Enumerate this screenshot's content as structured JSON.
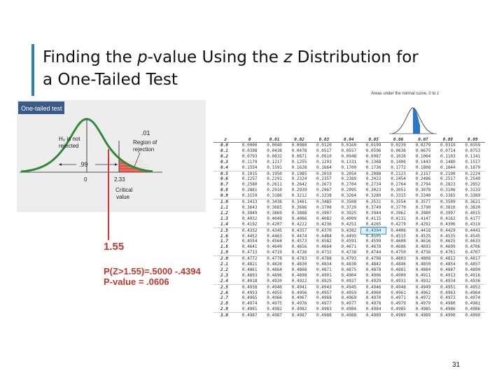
{
  "slide": {
    "title_line1_part1": "Finding the ",
    "title_line1_italic1": "p",
    "title_line1_part2": "-value  Using the ",
    "title_line1_italic2": "z",
    "title_line1_part3": " Distribution for",
    "title_line2": "a One-Tailed Test",
    "page_number": "31",
    "accent_color": "#2e7fb6"
  },
  "figure": {
    "heading": "One-tailed test",
    "h0_line1": "H₀ is not",
    "h0_line2": "rejected",
    "area_left": ".99",
    "area_right": ".01",
    "region_line1": "Region of",
    "region_line2": "rejection",
    "axis_zero": "0",
    "axis_critical": "2.33",
    "critical_line1": "Critical",
    "critical_line2": "value",
    "z_value": "1.55",
    "prob_line1": "P(Z>1.55)=.5000 -.4394",
    "prob_line2": "P-value = .0606"
  },
  "table": {
    "caption": "Areas under the normal curve, 0 to z",
    "columns": [
      "z",
      "0",
      "0.01",
      "0.02",
      "0.03",
      "0.04",
      "0.05",
      "0.06",
      "0.07",
      "0.08",
      "0.09"
    ],
    "highlight": {
      "row": 15,
      "col": 6
    },
    "rows": [
      [
        "0.0",
        "0.0000",
        "0.0040",
        "0.0080",
        "0.0120",
        "0.0160",
        "0.0199",
        "0.0239",
        "0.0279",
        "0.0319",
        "0.0359"
      ],
      [
        "0.1",
        "0.0398",
        "0.0438",
        "0.0478",
        "0.0517",
        "0.0557",
        "0.0596",
        "0.0636",
        "0.0675",
        "0.0714",
        "0.0753"
      ],
      [
        "0.2",
        "0.0793",
        "0.0832",
        "0.0871",
        "0.0910",
        "0.0948",
        "0.0987",
        "0.1026",
        "0.1064",
        "0.1103",
        "0.1141"
      ],
      [
        "0.3",
        "0.1179",
        "0.1217",
        "0.1255",
        "0.1293",
        "0.1331",
        "0.1368",
        "0.1406",
        "0.1443",
        "0.1480",
        "0.1517"
      ],
      [
        "0.4",
        "0.1554",
        "0.1591",
        "0.1628",
        "0.1664",
        "0.1700",
        "0.1736",
        "0.1772",
        "0.1808",
        "0.1844",
        "0.1879"
      ],
      [
        "0.5",
        "0.1915",
        "0.1950",
        "0.1985",
        "0.2019",
        "0.2054",
        "0.2088",
        "0.2123",
        "0.2157",
        "0.2190",
        "0.2224"
      ],
      [
        "0.6",
        "0.2257",
        "0.2291",
        "0.2324",
        "0.2357",
        "0.2389",
        "0.2422",
        "0.2454",
        "0.2486",
        "0.2517",
        "0.2549"
      ],
      [
        "0.7",
        "0.2580",
        "0.2611",
        "0.2642",
        "0.2673",
        "0.2704",
        "0.2734",
        "0.2764",
        "0.2794",
        "0.2823",
        "0.2852"
      ],
      [
        "0.8",
        "0.2881",
        "0.2910",
        "0.2939",
        "0.2967",
        "0.2995",
        "0.3023",
        "0.3051",
        "0.3078",
        "0.3106",
        "0.3133"
      ],
      [
        "0.9",
        "0.3159",
        "0.3186",
        "0.3212",
        "0.3238",
        "0.3264",
        "0.3289",
        "0.3315",
        "0.3340",
        "0.3365",
        "0.3389"
      ],
      [
        "1.0",
        "0.3413",
        "0.3438",
        "0.3461",
        "0.3485",
        "0.3508",
        "0.3531",
        "0.3554",
        "0.3577",
        "0.3599",
        "0.3621"
      ],
      [
        "1.1",
        "0.3643",
        "0.3665",
        "0.3686",
        "0.3708",
        "0.3729",
        "0.3749",
        "0.3770",
        "0.3790",
        "0.3810",
        "0.3830"
      ],
      [
        "1.2",
        "0.3849",
        "0.3869",
        "0.3888",
        "0.3907",
        "0.3925",
        "0.3944",
        "0.3962",
        "0.3980",
        "0.3997",
        "0.4015"
      ],
      [
        "1.3",
        "0.4032",
        "0.4049",
        "0.4066",
        "0.4082",
        "0.4099",
        "0.4115",
        "0.4131",
        "0.4147",
        "0.4162",
        "0.4177"
      ],
      [
        "1.4",
        "0.4192",
        "0.4207",
        "0.4222",
        "0.4236",
        "0.4251",
        "0.4265",
        "0.4279",
        "0.4292",
        "0.4306",
        "0.4319"
      ],
      [
        "1.5",
        "0.4332",
        "0.4345",
        "0.4357",
        "0.4370",
        "0.4382",
        "0.4394",
        "0.4406",
        "0.4418",
        "0.4429",
        "0.4441"
      ],
      [
        "1.6",
        "0.4452",
        "0.4463",
        "0.4474",
        "0.4484",
        "0.4495",
        "0.4505",
        "0.4515",
        "0.4525",
        "0.4535",
        "0.4545"
      ],
      [
        "1.7",
        "0.4554",
        "0.4564",
        "0.4573",
        "0.4582",
        "0.4591",
        "0.4599",
        "0.4608",
        "0.4616",
        "0.4625",
        "0.4633"
      ],
      [
        "1.8",
        "0.4641",
        "0.4649",
        "0.4656",
        "0.4664",
        "0.4671",
        "0.4678",
        "0.4686",
        "0.4693",
        "0.4699",
        "0.4706"
      ],
      [
        "1.9",
        "0.4713",
        "0.4719",
        "0.4726",
        "0.4732",
        "0.4738",
        "0.4744",
        "0.4750",
        "0.4756",
        "0.4761",
        "0.4767"
      ],
      [
        "2.0",
        "0.4772",
        "0.4778",
        "0.4783",
        "0.4788",
        "0.4793",
        "0.4798",
        "0.4803",
        "0.4808",
        "0.4812",
        "0.4817"
      ],
      [
        "2.1",
        "0.4821",
        "0.4826",
        "0.4830",
        "0.4834",
        "0.4838",
        "0.4842",
        "0.4846",
        "0.4850",
        "0.4854",
        "0.4857"
      ],
      [
        "2.2",
        "0.4861",
        "0.4864",
        "0.4868",
        "0.4871",
        "0.4875",
        "0.4878",
        "0.4881",
        "0.4884",
        "0.4887",
        "0.4890"
      ],
      [
        "2.3",
        "0.4893",
        "0.4896",
        "0.4898",
        "0.4901",
        "0.4904",
        "0.4906",
        "0.4909",
        "0.4911",
        "0.4913",
        "0.4916"
      ],
      [
        "2.4",
        "0.4918",
        "0.4920",
        "0.4922",
        "0.4925",
        "0.4927",
        "0.4929",
        "0.4931",
        "0.4932",
        "0.4934",
        "0.4936"
      ],
      [
        "2.5",
        "0.4938",
        "0.4940",
        "0.4941",
        "0.4943",
        "0.4945",
        "0.4946",
        "0.4948",
        "0.4949",
        "0.4951",
        "0.4952"
      ],
      [
        "2.6",
        "0.4953",
        "0.4955",
        "0.4956",
        "0.4957",
        "0.4959",
        "0.4960",
        "0.4961",
        "0.4962",
        "0.4963",
        "0.4964"
      ],
      [
        "2.7",
        "0.4965",
        "0.4966",
        "0.4967",
        "0.4968",
        "0.4969",
        "0.4970",
        "0.4971",
        "0.4972",
        "0.4973",
        "0.4974"
      ],
      [
        "2.8",
        "0.4974",
        "0.4975",
        "0.4976",
        "0.4977",
        "0.4977",
        "0.4978",
        "0.4979",
        "0.4979",
        "0.4980",
        "0.4981"
      ],
      [
        "2.9",
        "0.4981",
        "0.4982",
        "0.4982",
        "0.4983",
        "0.4984",
        "0.4984",
        "0.4985",
        "0.4985",
        "0.4986",
        "0.4986"
      ],
      [
        "3.0",
        "0.4987",
        "0.4987",
        "0.4987",
        "0.4988",
        "0.4988",
        "0.4989",
        "0.4989",
        "0.4989",
        "0.4990",
        "0.4990"
      ]
    ]
  }
}
